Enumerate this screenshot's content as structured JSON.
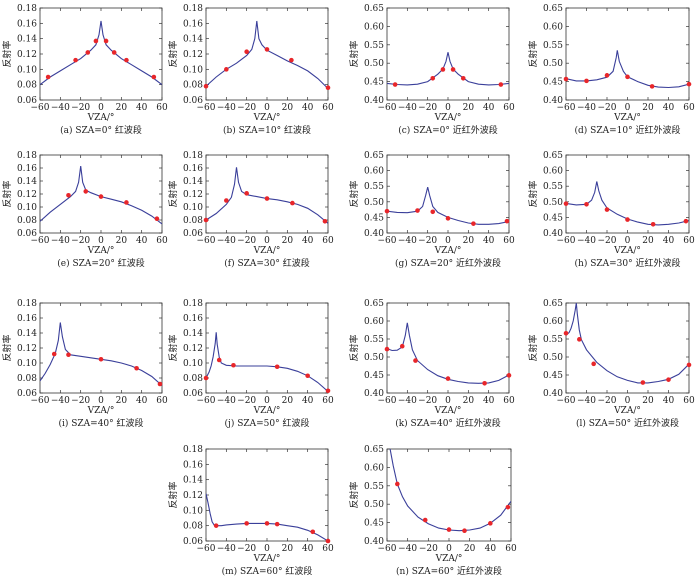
{
  "figure": {
    "y_axis_label": "反射率",
    "x_axis_label": "VZA/°"
  },
  "chart_data": [
    {
      "type": "line",
      "caption": "(a) SZA=0°  红波段",
      "ylim": [
        0.06,
        0.18
      ],
      "yticks": [
        0.06,
        0.08,
        0.1,
        0.12,
        0.14,
        0.16,
        0.18
      ],
      "xlim": [
        -60,
        60
      ],
      "xticks": [
        -60,
        -40,
        -20,
        0,
        20,
        40,
        60
      ],
      "curve_x": [
        -60,
        -50,
        -40,
        -30,
        -20,
        -10,
        -5,
        -2,
        0,
        2,
        5,
        10,
        20,
        30,
        40,
        50,
        60
      ],
      "curve_y": [
        0.08,
        0.09,
        0.098,
        0.106,
        0.114,
        0.125,
        0.132,
        0.145,
        0.163,
        0.145,
        0.132,
        0.125,
        0.114,
        0.106,
        0.098,
        0.09,
        0.08
      ],
      "points_x": [
        -52,
        -25,
        -13,
        -5,
        5,
        13,
        25,
        52
      ],
      "points_y": [
        0.09,
        0.112,
        0.122,
        0.137,
        0.137,
        0.122,
        0.112,
        0.09
      ]
    },
    {
      "type": "line",
      "caption": "(b) SZA=10°  红波段",
      "ylim": [
        0.06,
        0.18
      ],
      "yticks": [
        0.06,
        0.08,
        0.1,
        0.12,
        0.14,
        0.16,
        0.18
      ],
      "xlim": [
        -60,
        60
      ],
      "xticks": [
        -60,
        -40,
        -20,
        0,
        20,
        40,
        60
      ],
      "curve_x": [
        -60,
        -50,
        -40,
        -30,
        -20,
        -15,
        -12,
        -10,
        -8,
        -5,
        0,
        10,
        20,
        30,
        40,
        50,
        60
      ],
      "curve_y": [
        0.078,
        0.09,
        0.1,
        0.108,
        0.118,
        0.126,
        0.14,
        0.163,
        0.14,
        0.132,
        0.125,
        0.118,
        0.111,
        0.105,
        0.098,
        0.088,
        0.075
      ],
      "points_x": [
        -60,
        -40,
        -20,
        0,
        24,
        60
      ],
      "points_y": [
        0.078,
        0.1,
        0.123,
        0.126,
        0.112,
        0.076
      ]
    },
    {
      "type": "line",
      "caption": "(c) SZA=0°  近红外波段",
      "ylim": [
        0.4,
        0.65
      ],
      "yticks": [
        0.4,
        0.45,
        0.5,
        0.55,
        0.6,
        0.65
      ],
      "xlim": [
        -60,
        60
      ],
      "xticks": [
        -60,
        -40,
        -20,
        0,
        20,
        40,
        60
      ],
      "curve_x": [
        -60,
        -50,
        -40,
        -30,
        -20,
        -10,
        -5,
        -2,
        0,
        2,
        5,
        10,
        20,
        30,
        40,
        50,
        60
      ],
      "curve_y": [
        0.445,
        0.442,
        0.441,
        0.443,
        0.45,
        0.47,
        0.484,
        0.505,
        0.53,
        0.505,
        0.484,
        0.47,
        0.45,
        0.443,
        0.441,
        0.442,
        0.445
      ],
      "points_x": [
        -52,
        -15,
        -5,
        5,
        15,
        52
      ],
      "points_y": [
        0.442,
        0.459,
        0.483,
        0.483,
        0.459,
        0.442
      ]
    },
    {
      "type": "line",
      "caption": "(d) SZA=10°  近红外波段",
      "ylim": [
        0.4,
        0.65
      ],
      "yticks": [
        0.4,
        0.45,
        0.5,
        0.55,
        0.6,
        0.65
      ],
      "xlim": [
        -60,
        60
      ],
      "xticks": [
        -60,
        -40,
        -20,
        0,
        20,
        40,
        60
      ],
      "curve_x": [
        -60,
        -50,
        -40,
        -30,
        -20,
        -14,
        -11,
        -10,
        -8,
        -4,
        0,
        10,
        20,
        30,
        40,
        50,
        60
      ],
      "curve_y": [
        0.458,
        0.452,
        0.452,
        0.455,
        0.462,
        0.478,
        0.515,
        0.535,
        0.505,
        0.478,
        0.463,
        0.45,
        0.44,
        0.435,
        0.434,
        0.436,
        0.443
      ],
      "points_x": [
        -60,
        -40,
        -20,
        0,
        24,
        60
      ],
      "points_y": [
        0.457,
        0.452,
        0.467,
        0.463,
        0.437,
        0.443
      ]
    },
    {
      "type": "line",
      "caption": "(e) SZA=20°  红波段",
      "ylim": [
        0.06,
        0.18
      ],
      "yticks": [
        0.06,
        0.08,
        0.1,
        0.12,
        0.14,
        0.16,
        0.18
      ],
      "xlim": [
        -60,
        60
      ],
      "xticks": [
        -60,
        -40,
        -20,
        0,
        20,
        40,
        60
      ],
      "curve_x": [
        -60,
        -50,
        -40,
        -30,
        -25,
        -22,
        -20,
        -18,
        -15,
        -10,
        0,
        10,
        20,
        30,
        40,
        50,
        60
      ],
      "curve_y": [
        0.078,
        0.092,
        0.104,
        0.116,
        0.124,
        0.138,
        0.163,
        0.138,
        0.126,
        0.122,
        0.116,
        0.112,
        0.108,
        0.102,
        0.095,
        0.086,
        0.074
      ],
      "points_x": [
        -32,
        -15,
        0,
        25,
        55
      ],
      "points_y": [
        0.118,
        0.124,
        0.116,
        0.107,
        0.082
      ]
    },
    {
      "type": "line",
      "caption": "(f) SZA=30°  红波段",
      "ylim": [
        0.06,
        0.18
      ],
      "yticks": [
        0.06,
        0.08,
        0.1,
        0.12,
        0.14,
        0.16,
        0.18
      ],
      "xlim": [
        -60,
        60
      ],
      "xticks": [
        -60,
        -40,
        -20,
        0,
        20,
        40,
        60
      ],
      "curve_x": [
        -60,
        -50,
        -40,
        -35,
        -32,
        -30,
        -28,
        -25,
        -20,
        -10,
        0,
        10,
        20,
        30,
        40,
        50,
        60
      ],
      "curve_y": [
        0.08,
        0.09,
        0.104,
        0.115,
        0.135,
        0.161,
        0.138,
        0.124,
        0.119,
        0.116,
        0.113,
        0.111,
        0.108,
        0.104,
        0.098,
        0.088,
        0.075
      ],
      "points_x": [
        -60,
        -40,
        -20,
        0,
        25,
        57
      ],
      "points_y": [
        0.08,
        0.11,
        0.121,
        0.113,
        0.106,
        0.078
      ]
    },
    {
      "type": "line",
      "caption": "(g) SZA=20°  近红外波段",
      "ylim": [
        0.4,
        0.65
      ],
      "yticks": [
        0.4,
        0.45,
        0.5,
        0.55,
        0.6,
        0.65
      ],
      "xlim": [
        -60,
        60
      ],
      "xticks": [
        -60,
        -40,
        -20,
        0,
        20,
        40,
        60
      ],
      "curve_x": [
        -60,
        -50,
        -40,
        -30,
        -25,
        -22,
        -20,
        -18,
        -15,
        -10,
        0,
        10,
        20,
        30,
        40,
        50,
        60
      ],
      "curve_y": [
        0.47,
        0.466,
        0.465,
        0.47,
        0.485,
        0.52,
        0.547,
        0.52,
        0.485,
        0.466,
        0.45,
        0.44,
        0.432,
        0.428,
        0.428,
        0.43,
        0.437
      ],
      "points_x": [
        -60,
        -30,
        -15,
        0,
        25,
        58
      ],
      "points_y": [
        0.47,
        0.472,
        0.468,
        0.447,
        0.43,
        0.438
      ]
    },
    {
      "type": "line",
      "caption": "(h) SZA=30°  近红外波段",
      "ylim": [
        0.4,
        0.65
      ],
      "yticks": [
        0.4,
        0.45,
        0.5,
        0.55,
        0.6,
        0.65
      ],
      "xlim": [
        -60,
        60
      ],
      "xticks": [
        -60,
        -40,
        -20,
        0,
        20,
        40,
        60
      ],
      "curve_x": [
        -60,
        -50,
        -40,
        -35,
        -32,
        -30,
        -28,
        -25,
        -20,
        -10,
        0,
        10,
        20,
        30,
        40,
        50,
        60
      ],
      "curve_y": [
        0.495,
        0.49,
        0.492,
        0.505,
        0.53,
        0.565,
        0.535,
        0.505,
        0.48,
        0.46,
        0.445,
        0.435,
        0.428,
        0.426,
        0.428,
        0.432,
        0.44
      ],
      "points_x": [
        -60,
        -40,
        -20,
        0,
        25,
        57
      ],
      "points_y": [
        0.494,
        0.492,
        0.475,
        0.443,
        0.428,
        0.438
      ]
    },
    {
      "type": "line",
      "caption": "(i) SZA=40°  红波段",
      "ylim": [
        0.06,
        0.18
      ],
      "yticks": [
        0.06,
        0.08,
        0.1,
        0.12,
        0.14,
        0.16,
        0.18
      ],
      "xlim": [
        -60,
        60
      ],
      "xticks": [
        -60,
        -40,
        -20,
        0,
        20,
        40,
        60
      ],
      "curve_x": [
        -60,
        -55,
        -50,
        -45,
        -42,
        -40,
        -38,
        -35,
        -30,
        -20,
        -10,
        0,
        10,
        20,
        30,
        40,
        50,
        60
      ],
      "curve_y": [
        0.076,
        0.086,
        0.098,
        0.113,
        0.13,
        0.154,
        0.135,
        0.118,
        0.111,
        0.109,
        0.107,
        0.105,
        0.103,
        0.1,
        0.096,
        0.09,
        0.082,
        0.07
      ],
      "points_x": [
        -46,
        -32,
        0,
        35,
        58
      ],
      "points_y": [
        0.112,
        0.111,
        0.105,
        0.093,
        0.072
      ]
    },
    {
      "type": "line",
      "caption": "(j) SZA=50°  红波段",
      "ylim": [
        0.06,
        0.18
      ],
      "yticks": [
        0.06,
        0.08,
        0.1,
        0.12,
        0.14,
        0.16,
        0.18
      ],
      "xlim": [
        -60,
        60
      ],
      "xticks": [
        -60,
        -40,
        -20,
        0,
        20,
        40,
        60
      ],
      "curve_x": [
        -60,
        -57,
        -55,
        -53,
        -51,
        -50,
        -49,
        -47,
        -45,
        -40,
        -30,
        -20,
        -10,
        0,
        10,
        20,
        30,
        40,
        50,
        60
      ],
      "curve_y": [
        0.08,
        0.088,
        0.096,
        0.108,
        0.126,
        0.141,
        0.125,
        0.108,
        0.1,
        0.097,
        0.096,
        0.096,
        0.096,
        0.096,
        0.095,
        0.093,
        0.089,
        0.083,
        0.074,
        0.062
      ],
      "points_x": [
        -60,
        -47,
        -33,
        10,
        40,
        60
      ],
      "points_y": [
        0.08,
        0.104,
        0.097,
        0.095,
        0.083,
        0.063
      ]
    },
    {
      "type": "line",
      "caption": "(k) SZA=40°  近红外波段",
      "ylim": [
        0.4,
        0.65
      ],
      "yticks": [
        0.4,
        0.45,
        0.5,
        0.55,
        0.6,
        0.65
      ],
      "xlim": [
        -60,
        60
      ],
      "xticks": [
        -60,
        -40,
        -20,
        0,
        20,
        40,
        60
      ],
      "curve_x": [
        -60,
        -55,
        -50,
        -45,
        -42,
        -40,
        -38,
        -35,
        -30,
        -20,
        -10,
        0,
        10,
        20,
        30,
        40,
        50,
        60
      ],
      "curve_y": [
        0.523,
        0.518,
        0.519,
        0.528,
        0.56,
        0.595,
        0.56,
        0.52,
        0.49,
        0.465,
        0.448,
        0.438,
        0.432,
        0.428,
        0.427,
        0.428,
        0.435,
        0.45
      ],
      "points_x": [
        -60,
        -45,
        -32,
        0,
        36,
        60
      ],
      "points_y": [
        0.522,
        0.53,
        0.49,
        0.44,
        0.427,
        0.449
      ]
    },
    {
      "type": "line",
      "caption": "(l) SZA=50°  近红外波段",
      "ylim": [
        0.4,
        0.65
      ],
      "yticks": [
        0.4,
        0.45,
        0.5,
        0.55,
        0.6,
        0.65
      ],
      "xlim": [
        -60,
        60
      ],
      "xticks": [
        -60,
        -40,
        -20,
        0,
        20,
        40,
        60
      ],
      "curve_x": [
        -60,
        -57,
        -55,
        -53,
        -51,
        -50,
        -49,
        -47,
        -45,
        -40,
        -30,
        -20,
        -10,
        0,
        10,
        20,
        30,
        40,
        50,
        60
      ],
      "curve_y": [
        0.56,
        0.568,
        0.58,
        0.6,
        0.63,
        0.65,
        0.62,
        0.575,
        0.548,
        0.52,
        0.485,
        0.462,
        0.445,
        0.435,
        0.428,
        0.428,
        0.432,
        0.438,
        0.452,
        0.48
      ],
      "points_x": [
        -60,
        -47,
        -33,
        15,
        40,
        60
      ],
      "points_y": [
        0.566,
        0.549,
        0.481,
        0.429,
        0.437,
        0.478
      ]
    },
    {
      "type": "line",
      "caption": "(m) SZA=60°  红波段",
      "ylim": [
        0.06,
        0.18
      ],
      "yticks": [
        0.06,
        0.08,
        0.1,
        0.12,
        0.14,
        0.16,
        0.18
      ],
      "xlim": [
        -60,
        60
      ],
      "xticks": [
        -60,
        -40,
        -20,
        0,
        20,
        40,
        60
      ],
      "curve_x": [
        -60,
        -58,
        -56,
        -54,
        -52,
        -50,
        -45,
        -40,
        -30,
        -20,
        -10,
        0,
        10,
        20,
        30,
        40,
        50,
        60
      ],
      "curve_y": [
        0.122,
        0.11,
        0.096,
        0.085,
        0.081,
        0.08,
        0.08,
        0.081,
        0.082,
        0.083,
        0.083,
        0.083,
        0.082,
        0.08,
        0.078,
        0.074,
        0.068,
        0.06
      ],
      "points_x": [
        -50,
        -20,
        0,
        10,
        45,
        60
      ],
      "points_y": [
        0.08,
        0.083,
        0.083,
        0.082,
        0.072,
        0.06
      ]
    },
    {
      "type": "line",
      "caption": "(n) SZA=60°  近红外波段",
      "ylim": [
        0.4,
        0.65
      ],
      "yticks": [
        0.4,
        0.45,
        0.5,
        0.55,
        0.6,
        0.65
      ],
      "xlim": [
        -60,
        60
      ],
      "xticks": [
        -60,
        -40,
        -20,
        0,
        20,
        40,
        60
      ],
      "curve_x": [
        -57,
        -54,
        -50,
        -45,
        -40,
        -30,
        -20,
        -10,
        0,
        10,
        20,
        30,
        40,
        50,
        60
      ],
      "curve_y": [
        0.65,
        0.605,
        0.555,
        0.52,
        0.495,
        0.465,
        0.447,
        0.435,
        0.43,
        0.428,
        0.43,
        0.435,
        0.448,
        0.47,
        0.508
      ],
      "points_x": [
        -50,
        -23,
        0,
        15,
        40,
        57
      ],
      "points_y": [
        0.555,
        0.457,
        0.431,
        0.428,
        0.448,
        0.492
      ]
    }
  ]
}
